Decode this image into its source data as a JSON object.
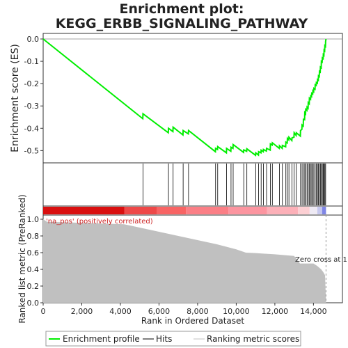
{
  "chart_data": {
    "type": "line",
    "title_line1": "Enrichment plot:",
    "title_line2": "KEGG_ERBB_SIGNALING_PATHWAY",
    "es_ylabel": "Enrichment score (ES)",
    "metric_ylabel": "Ranked list metric (PreRanked)",
    "xlabel": "Rank in Ordered Dataset",
    "xlim": [
      0,
      15500
    ],
    "es_ylim": [
      -0.555,
      0.025
    ],
    "metric_ylim": [
      0,
      1.05
    ],
    "x_ticks": [
      0,
      2000,
      4000,
      6000,
      8000,
      10000,
      12000,
      14000
    ],
    "x_tick_labels": [
      "0",
      "2,000",
      "4,000",
      "6,000",
      "8,000",
      "10,000",
      "12,000",
      "14,000"
    ],
    "es_ticks": [
      0.0,
      -0.1,
      -0.2,
      -0.3,
      -0.4,
      -0.5
    ],
    "es_tick_labels": [
      "0.0",
      "-0.1",
      "-0.2",
      "-0.3",
      "-0.4",
      "-0.5"
    ],
    "metric_ticks": [
      0.0,
      0.2,
      0.4,
      0.6,
      0.8,
      1.0
    ],
    "metric_tick_labels": [
      "0.0",
      "0.2",
      "0.4",
      "0.6",
      "0.8",
      "1.0"
    ],
    "positive_label": "'na_pos' (positively correlated)",
    "zero_cross_label": "Zero cross at 1",
    "zero_cross_rank": 14650,
    "series": [
      {
        "name": "Enrichment profile",
        "color": "#00ee00",
        "x": [
          0,
          5160,
          5170,
          6480,
          6490,
          6720,
          6730,
          7240,
          7250,
          7520,
          7530,
          8920,
          8930,
          9030,
          9040,
          9490,
          9500,
          9720,
          9730,
          9830,
          9840,
          10380,
          10390,
          10540,
          10550,
          11000,
          11010,
          11150,
          11160,
          11280,
          11290,
          11400,
          11410,
          11560,
          11570,
          11760,
          11770,
          11860,
          11870,
          12230,
          12240,
          12380,
          12390,
          12560,
          12570,
          12640,
          12650,
          12720,
          12730,
          12880,
          12890,
          12990,
          13000,
          13100,
          13110,
          13320,
          13330,
          13400,
          13410,
          13470,
          13480,
          13540,
          13550,
          13590,
          13600,
          13660,
          13670,
          13720,
          13730,
          13780,
          13790,
          13850,
          13860,
          13900,
          13910,
          13960,
          13970,
          14010,
          14020,
          14080,
          14090,
          14140,
          14150,
          14200,
          14210,
          14250,
          14260,
          14300,
          14310,
          14350,
          14360,
          14400,
          14410,
          14450,
          14460,
          14500,
          14510,
          14540,
          14550,
          14580,
          14590,
          14620,
          14630,
          14650
        ],
        "y": [
          0.0,
          -0.357,
          -0.335,
          -0.42,
          -0.4,
          -0.415,
          -0.395,
          -0.43,
          -0.41,
          -0.425,
          -0.41,
          -0.505,
          -0.49,
          -0.495,
          -0.482,
          -0.51,
          -0.49,
          -0.503,
          -0.485,
          -0.49,
          -0.473,
          -0.508,
          -0.497,
          -0.503,
          -0.492,
          -0.521,
          -0.51,
          -0.52,
          -0.505,
          -0.51,
          -0.498,
          -0.505,
          -0.495,
          -0.502,
          -0.49,
          -0.498,
          -0.47,
          -0.475,
          -0.465,
          -0.49,
          -0.478,
          -0.49,
          -0.477,
          -0.483,
          -0.462,
          -0.466,
          -0.445,
          -0.452,
          -0.44,
          -0.455,
          -0.443,
          -0.44,
          -0.42,
          -0.432,
          -0.42,
          -0.435,
          -0.41,
          -0.405,
          -0.385,
          -0.39,
          -0.36,
          -0.362,
          -0.33,
          -0.335,
          -0.315,
          -0.32,
          -0.305,
          -0.31,
          -0.285,
          -0.29,
          -0.265,
          -0.27,
          -0.255,
          -0.258,
          -0.243,
          -0.246,
          -0.232,
          -0.236,
          -0.221,
          -0.225,
          -0.205,
          -0.208,
          -0.195,
          -0.198,
          -0.182,
          -0.185,
          -0.165,
          -0.168,
          -0.145,
          -0.148,
          -0.126,
          -0.129,
          -0.1,
          -0.103,
          -0.085,
          -0.088,
          -0.07,
          -0.073,
          -0.05,
          -0.053,
          -0.03,
          -0.033,
          -0.01,
          0.0
        ]
      },
      {
        "name": "Hits",
        "color": "#000000",
        "ranks": [
          5170,
          6490,
          6730,
          7250,
          7530,
          8930,
          9040,
          9500,
          9730,
          9840,
          10390,
          10550,
          11010,
          11160,
          11290,
          11410,
          11570,
          11770,
          11870,
          12240,
          12390,
          12570,
          12650,
          12730,
          12890,
          13000,
          13110,
          13330,
          13410,
          13480,
          13550,
          13600,
          13670,
          13730,
          13790,
          13860,
          13910,
          13970,
          14020,
          14090,
          14150,
          14210,
          14260,
          14310,
          14360,
          14410,
          14460,
          14510,
          14550,
          14590,
          14630
        ]
      },
      {
        "name": "Ranking metric scores",
        "color": "#c0c0c0",
        "x": [
          0,
          200,
          4200,
          5000,
          6000,
          7000,
          8000,
          9000,
          10000,
          10500,
          11000,
          12000,
          13000,
          13300,
          13500,
          14000,
          14200,
          14400,
          14500,
          14600,
          14650
        ],
        "y": [
          1.0,
          0.97,
          0.94,
          0.9,
          0.85,
          0.8,
          0.75,
          0.7,
          0.64,
          0.6,
          0.595,
          0.58,
          0.56,
          0.47,
          0.47,
          0.47,
          0.44,
          0.4,
          0.37,
          0.33,
          0.0
        ]
      }
    ],
    "heat_segments": [
      {
        "from": 0,
        "to": 4200,
        "color": "#d90f0f"
      },
      {
        "from": 4200,
        "to": 5900,
        "color": "#ee4848"
      },
      {
        "from": 5900,
        "to": 7400,
        "color": "#f86464"
      },
      {
        "from": 7400,
        "to": 9600,
        "color": "#fb7f86"
      },
      {
        "from": 9600,
        "to": 11600,
        "color": "#fc95a0"
      },
      {
        "from": 11600,
        "to": 13200,
        "color": "#fcb0b8"
      },
      {
        "from": 13200,
        "to": 13800,
        "color": "#fccfd3"
      },
      {
        "from": 13800,
        "to": 14200,
        "color": "#eeeaf4"
      },
      {
        "from": 14200,
        "to": 14450,
        "color": "#c6c8ee"
      },
      {
        "from": 14450,
        "to": 14650,
        "color": "#7f86e6"
      }
    ],
    "legend": [
      {
        "label": "Enrichment profile",
        "color": "#00ee00",
        "kind": "line"
      },
      {
        "label": "Hits",
        "color": "#000000",
        "kind": "line"
      },
      {
        "label": "Ranking metric scores",
        "color": "#c0c0c0",
        "kind": "line"
      }
    ]
  }
}
